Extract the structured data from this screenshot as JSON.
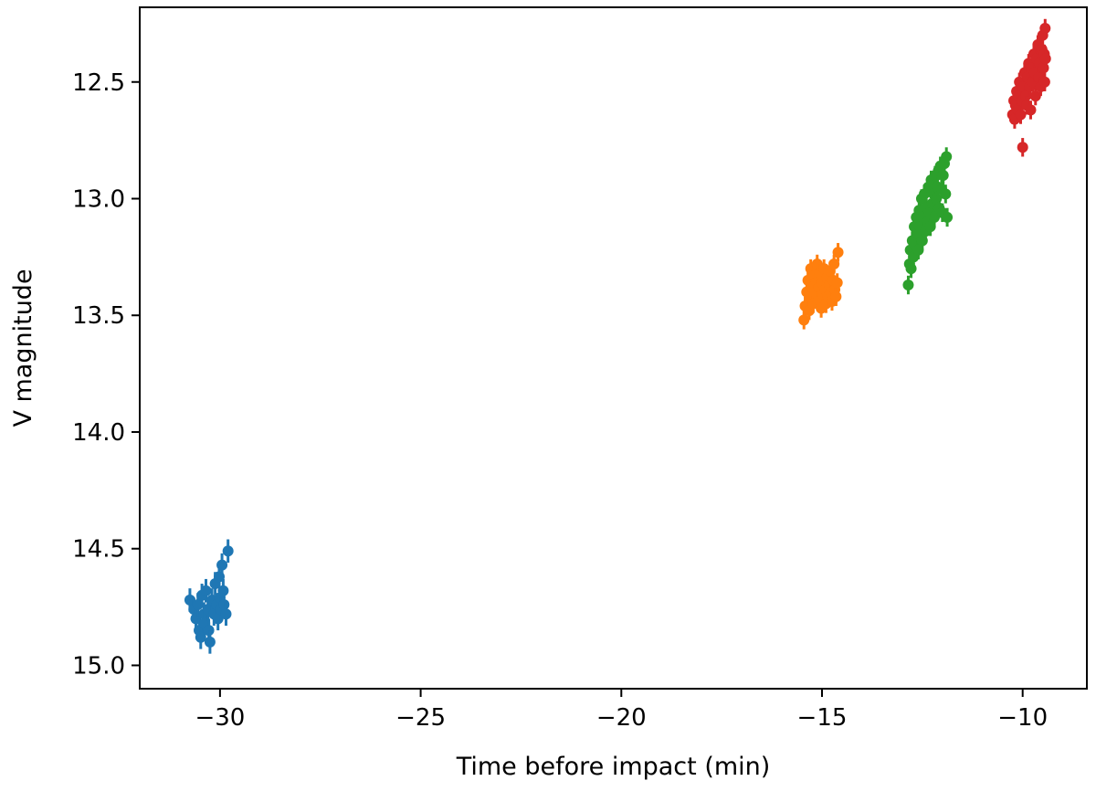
{
  "chart_data": {
    "type": "scatter",
    "title": "",
    "xlabel": "Time before impact (min)",
    "ylabel": "V magnitude",
    "xlim": [
      -32,
      -8.4
    ],
    "ylim": [
      15.1,
      12.18
    ],
    "y_inverted": true,
    "x_ticks": [
      -30,
      -25,
      -20,
      -15,
      -10
    ],
    "x_tick_labels": [
      "−30",
      "−25",
      "−20",
      "−15",
      "−10"
    ],
    "y_ticks": [
      12.5,
      13.0,
      13.5,
      14.0,
      14.5,
      15.0
    ],
    "y_tick_labels": [
      "12.5",
      "13.0",
      "13.5",
      "14.0",
      "14.5",
      "15.0"
    ],
    "grid": false,
    "legend": "none",
    "series": [
      {
        "color": "#1f77b4",
        "error": 0.05,
        "points": [
          [
            -30.75,
            14.72
          ],
          [
            -30.65,
            14.76
          ],
          [
            -30.6,
            14.8
          ],
          [
            -30.55,
            14.74
          ],
          [
            -30.52,
            14.85
          ],
          [
            -30.48,
            14.88
          ],
          [
            -30.45,
            14.7
          ],
          [
            -30.4,
            14.78
          ],
          [
            -30.38,
            14.82
          ],
          [
            -30.35,
            14.68
          ],
          [
            -30.3,
            14.76
          ],
          [
            -30.28,
            14.85
          ],
          [
            -30.25,
            14.9
          ],
          [
            -30.2,
            14.72
          ],
          [
            -30.15,
            14.78
          ],
          [
            -30.12,
            14.65
          ],
          [
            -30.08,
            14.74
          ],
          [
            -30.05,
            14.8
          ],
          [
            -30.02,
            14.62
          ],
          [
            -30.0,
            14.71
          ],
          [
            -29.98,
            14.76
          ],
          [
            -29.95,
            14.57
          ],
          [
            -29.92,
            14.68
          ],
          [
            -29.9,
            14.74
          ],
          [
            -29.85,
            14.78
          ],
          [
            -29.8,
            14.51
          ]
        ]
      },
      {
        "color": "#ff7f0e",
        "error": 0.04,
        "points": [
          [
            -15.45,
            13.52
          ],
          [
            -15.42,
            13.46
          ],
          [
            -15.38,
            13.4
          ],
          [
            -15.35,
            13.35
          ],
          [
            -15.32,
            13.48
          ],
          [
            -15.3,
            13.42
          ],
          [
            -15.28,
            13.3
          ],
          [
            -15.25,
            13.38
          ],
          [
            -15.22,
            13.45
          ],
          [
            -15.2,
            13.33
          ],
          [
            -15.18,
            13.4
          ],
          [
            -15.15,
            13.36
          ],
          [
            -15.12,
            13.28
          ],
          [
            -15.1,
            13.44
          ],
          [
            -15.08,
            13.38
          ],
          [
            -15.05,
            13.32
          ],
          [
            -15.02,
            13.47
          ],
          [
            -15.0,
            13.36
          ],
          [
            -14.98,
            13.41
          ],
          [
            -14.95,
            13.3
          ],
          [
            -14.92,
            13.39
          ],
          [
            -14.9,
            13.45
          ],
          [
            -14.88,
            13.34
          ],
          [
            -14.85,
            13.42
          ],
          [
            -14.82,
            13.37
          ],
          [
            -14.8,
            13.31
          ],
          [
            -14.78,
            13.4
          ],
          [
            -14.75,
            13.44
          ],
          [
            -14.72,
            13.35
          ],
          [
            -14.7,
            13.28
          ],
          [
            -14.68,
            13.39
          ],
          [
            -14.65,
            13.42
          ],
          [
            -14.62,
            13.36
          ],
          [
            -14.6,
            13.23
          ]
        ]
      },
      {
        "color": "#2ca02c",
        "error": 0.04,
        "points": [
          [
            -12.85,
            13.37
          ],
          [
            -12.82,
            13.28
          ],
          [
            -12.8,
            13.22
          ],
          [
            -12.78,
            13.3
          ],
          [
            -12.75,
            13.18
          ],
          [
            -12.72,
            13.25
          ],
          [
            -12.7,
            13.12
          ],
          [
            -12.68,
            13.2
          ],
          [
            -12.65,
            13.08
          ],
          [
            -12.62,
            13.15
          ],
          [
            -12.6,
            13.22
          ],
          [
            -12.58,
            13.05
          ],
          [
            -12.55,
            13.12
          ],
          [
            -12.52,
            13.0
          ],
          [
            -12.5,
            13.18
          ],
          [
            -12.48,
            13.08
          ],
          [
            -12.45,
            12.98
          ],
          [
            -12.42,
            13.14
          ],
          [
            -12.4,
            13.04
          ],
          [
            -12.38,
            13.1
          ],
          [
            -12.35,
            12.95
          ],
          [
            -12.32,
            13.06
          ],
          [
            -12.3,
            13.12
          ],
          [
            -12.28,
            12.92
          ],
          [
            -12.25,
            13.02
          ],
          [
            -12.22,
            12.98
          ],
          [
            -12.2,
            13.08
          ],
          [
            -12.18,
            12.9
          ],
          [
            -12.15,
            13.0
          ],
          [
            -12.12,
            12.95
          ],
          [
            -12.1,
            12.88
          ],
          [
            -12.08,
            13.04
          ],
          [
            -12.05,
            12.86
          ],
          [
            -12.02,
            12.96
          ],
          [
            -12.0,
            13.06
          ],
          [
            -11.98,
            12.9
          ],
          [
            -11.95,
            12.85
          ],
          [
            -11.92,
            12.98
          ],
          [
            -11.9,
            12.82
          ],
          [
            -11.88,
            13.08
          ]
        ]
      },
      {
        "color": "#d62728",
        "error": 0.04,
        "points": [
          [
            -10.25,
            12.64
          ],
          [
            -10.22,
            12.58
          ],
          [
            -10.2,
            12.66
          ],
          [
            -10.18,
            12.6
          ],
          [
            -10.15,
            12.54
          ],
          [
            -10.12,
            12.62
          ],
          [
            -10.1,
            12.56
          ],
          [
            -10.08,
            12.5
          ],
          [
            -10.05,
            12.64
          ],
          [
            -10.02,
            12.58
          ],
          [
            -10.0,
            12.78
          ],
          [
            -9.98,
            12.52
          ],
          [
            -9.95,
            12.46
          ],
          [
            -9.92,
            12.56
          ],
          [
            -9.9,
            12.6
          ],
          [
            -9.88,
            12.48
          ],
          [
            -9.85,
            12.42
          ],
          [
            -9.82,
            12.52
          ],
          [
            -9.8,
            12.62
          ],
          [
            -9.78,
            12.44
          ],
          [
            -9.75,
            12.5
          ],
          [
            -9.72,
            12.38
          ],
          [
            -9.7,
            12.46
          ],
          [
            -9.68,
            12.56
          ],
          [
            -9.65,
            12.4
          ],
          [
            -9.62,
            12.34
          ],
          [
            -9.6,
            12.48
          ],
          [
            -9.58,
            12.42
          ],
          [
            -9.55,
            12.52
          ],
          [
            -9.52,
            12.36
          ],
          [
            -9.5,
            12.3
          ],
          [
            -9.48,
            12.44
          ],
          [
            -9.46,
            12.38
          ],
          [
            -9.45,
            12.5
          ],
          [
            -9.44,
            12.27
          ],
          [
            -9.43,
            12.4
          ]
        ]
      }
    ]
  }
}
